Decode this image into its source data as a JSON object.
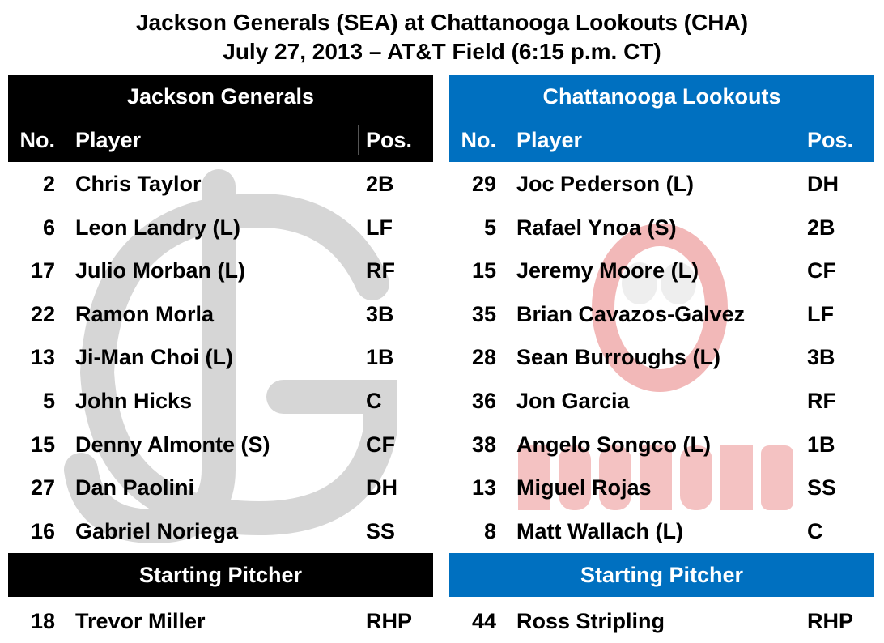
{
  "title": {
    "line1": "Jackson Generals (SEA) at Chattanooga Lookouts (CHA)",
    "line2": "July 27, 2013 – AT&T Field (6:15 p.m. CT)"
  },
  "colors": {
    "away": "#000000",
    "home": "#0070C0"
  },
  "columns": {
    "no": "No.",
    "player": "Player",
    "pos": "Pos."
  },
  "away": {
    "team": "Jackson Generals",
    "watermark": "JG",
    "lineup": [
      {
        "no": "2",
        "player": "Chris Taylor",
        "pos": "2B"
      },
      {
        "no": "6",
        "player": "Leon Landry (L)",
        "pos": "LF"
      },
      {
        "no": "17",
        "player": "Julio Morban (L)",
        "pos": "RF"
      },
      {
        "no": "22",
        "player": "Ramon Morla",
        "pos": "3B"
      },
      {
        "no": "13",
        "player": "Ji-Man Choi (L)",
        "pos": "1B"
      },
      {
        "no": "5",
        "player": "John Hicks",
        "pos": "C"
      },
      {
        "no": "15",
        "player": "Denny Almonte (S)",
        "pos": "CF"
      },
      {
        "no": "27",
        "player": "Dan Paolini",
        "pos": "DH"
      },
      {
        "no": "16",
        "player": "Gabriel Noriega",
        "pos": "SS"
      }
    ],
    "sp_label": "Starting Pitcher",
    "sp": {
      "no": "18",
      "player": "Trevor Miller",
      "pos": "RHP"
    }
  },
  "home": {
    "team": "Chattanooga Lookouts",
    "watermark": "CHATTANOOGA LOOKOUTS",
    "lineup": [
      {
        "no": "29",
        "player": "Joc Pederson (L)",
        "pos": "DH"
      },
      {
        "no": "5",
        "player": "Rafael Ynoa (S)",
        "pos": "2B"
      },
      {
        "no": "15",
        "player": "Jeremy Moore (L)",
        "pos": "CF"
      },
      {
        "no": "35",
        "player": "Brian Cavazos-Galvez",
        "pos": "LF"
      },
      {
        "no": "28",
        "player": "Sean Burroughs (L)",
        "pos": "3B"
      },
      {
        "no": "36",
        "player": "Jon Garcia",
        "pos": "RF"
      },
      {
        "no": "38",
        "player": "Angelo Songco (L)",
        "pos": "1B"
      },
      {
        "no": "13",
        "player": "Miguel Rojas",
        "pos": "SS"
      },
      {
        "no": "8",
        "player": "Matt Wallach (L)",
        "pos": "C"
      }
    ],
    "sp_label": "Starting Pitcher",
    "sp": {
      "no": "44",
      "player": "Ross Stripling",
      "pos": "RHP"
    }
  }
}
